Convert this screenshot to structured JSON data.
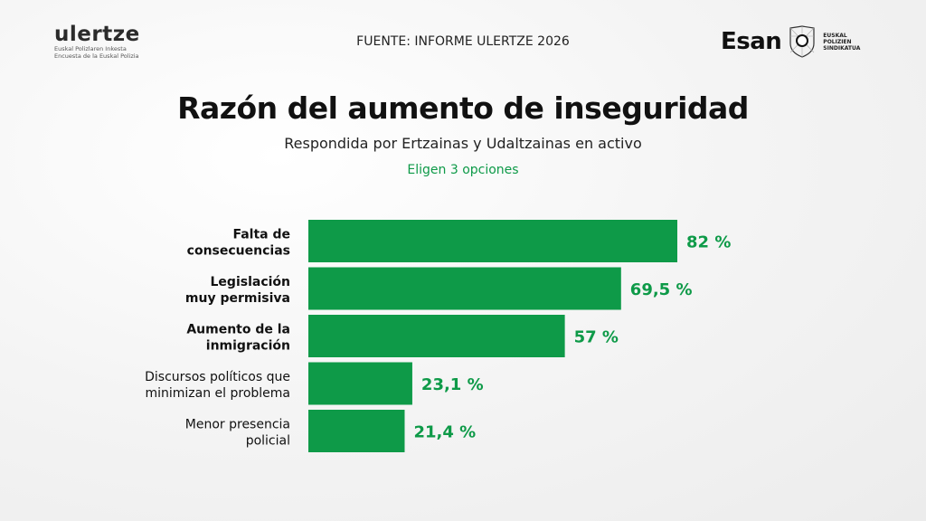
{
  "header": {
    "logo_left": {
      "name": "ulertze",
      "line1": "Euskal Polizlaren Inkesta",
      "line2": "Encuesta de la Euskal Polizia"
    },
    "source": "FUENTE: INFORME ULERTZE 2026",
    "logo_right": {
      "name": "Esan",
      "org_lines": [
        "EUSKAL",
        "POLIZIEN",
        "SINDIKATUA"
      ]
    }
  },
  "colors": {
    "bar": "#0e9a48",
    "label": "#0e9a48"
  },
  "chart_data": {
    "type": "bar",
    "orientation": "horizontal",
    "title": "Razón del aumento de inseguridad",
    "subtitle": "Respondida por Ertzainas y Udaltzainas en activo",
    "note": "Eligen 3 opciones",
    "categories": [
      {
        "lines": [
          "Falta de",
          "consecuencias"
        ],
        "bold": true
      },
      {
        "lines": [
          "Legislación",
          "muy permisiva"
        ],
        "bold": true
      },
      {
        "lines": [
          "Aumento de la",
          "inmigración"
        ],
        "bold": true
      },
      {
        "lines": [
          "Discursos políticos que",
          "minimizan el problema"
        ],
        "bold": false
      },
      {
        "lines": [
          "Menor presencia",
          "policial"
        ],
        "bold": false
      }
    ],
    "values": [
      82,
      69.5,
      57,
      23.1,
      21.4
    ],
    "data_labels": [
      "82 %",
      "69,5 %",
      "57 %",
      "23,1 %",
      "21,4 %"
    ],
    "xlim": [
      0,
      100
    ],
    "grid": false
  }
}
